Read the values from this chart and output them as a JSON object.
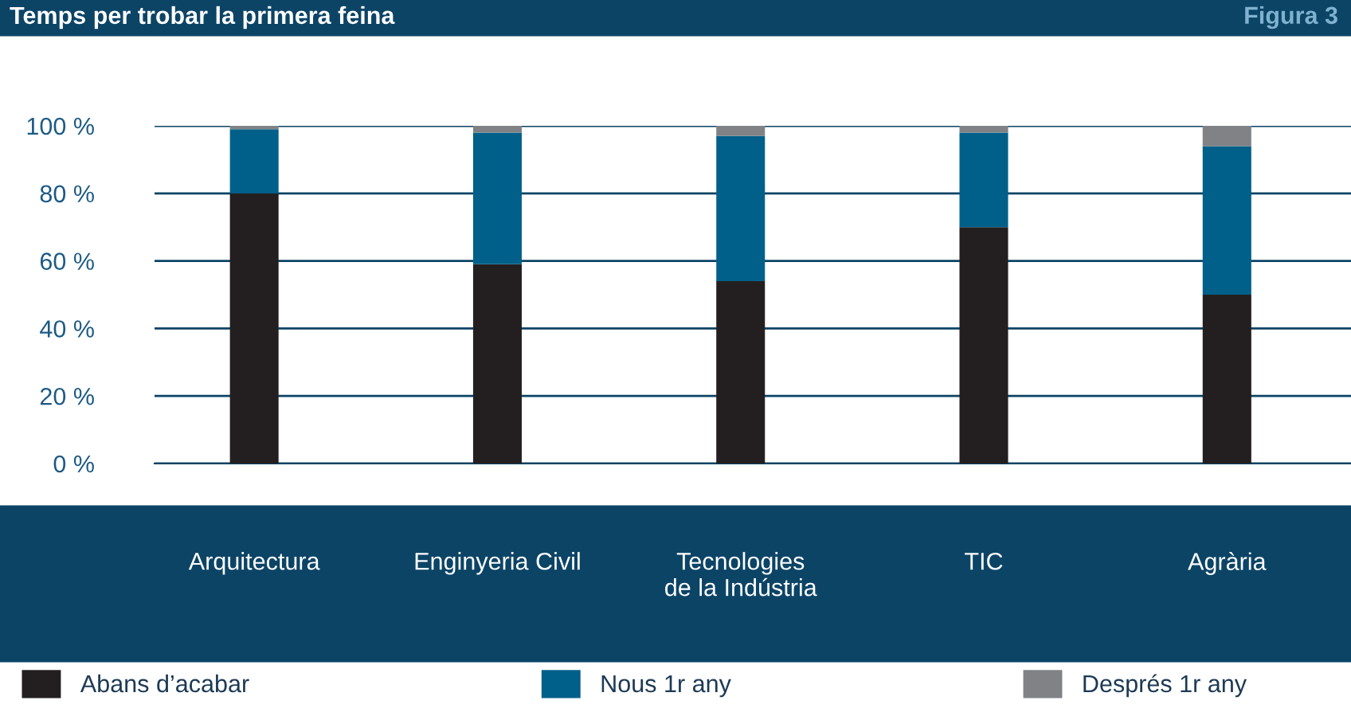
{
  "chart_data": {
    "type": "bar",
    "title": "Temps per trobar la primera feina",
    "annotations": [
      "Figura 3"
    ],
    "categories": [
      "Arquitectura",
      "Enginyeria Civil",
      "Tecnologies\nde la Indústria",
      "TIC",
      "Agrària"
    ],
    "stacked": true,
    "series": [
      {
        "name": "Abans d’acabar",
        "color": "#231f20",
        "values": [
          80,
          59,
          54,
          70,
          50
        ]
      },
      {
        "name": "Nous 1r any",
        "color": "#00608a",
        "values": [
          19,
          39,
          43,
          28,
          44
        ]
      },
      {
        "name": "Després 1r any",
        "color": "#808285",
        "values": [
          1,
          2,
          3,
          2,
          6
        ]
      }
    ],
    "ylim": [
      0,
      100
    ],
    "yticks": [
      {
        "value": 0,
        "label": "0 %"
      },
      {
        "value": 20,
        "label": "20 %"
      },
      {
        "value": 40,
        "label": "40 %"
      },
      {
        "value": 60,
        "label": "60 %"
      },
      {
        "value": 80,
        "label": "80 %"
      },
      {
        "value": 100,
        "label": "100 %"
      }
    ],
    "grid": "y",
    "legend": "bottom"
  }
}
